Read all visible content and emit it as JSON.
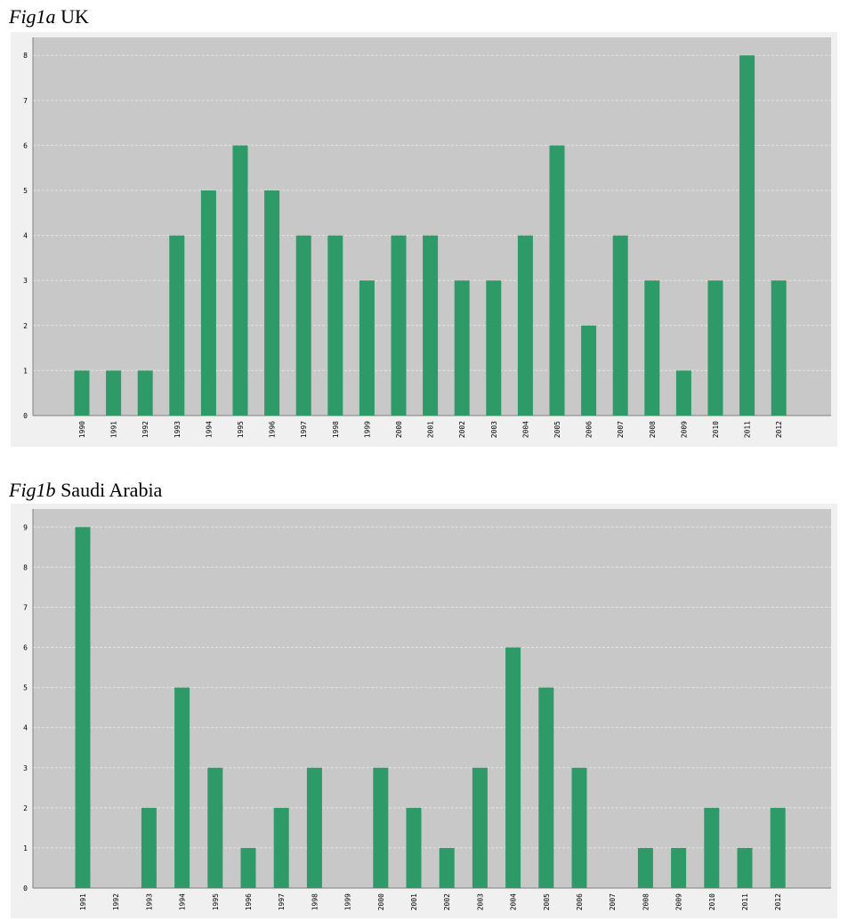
{
  "figures": [
    {
      "tag": "Fig1a",
      "title": "UK",
      "chart_data": {
        "type": "bar",
        "categories": [
          "1990",
          "1991",
          "1992",
          "1993",
          "1994",
          "1995",
          "1996",
          "1997",
          "1998",
          "1999",
          "2000",
          "2001",
          "2002",
          "2003",
          "2004",
          "2005",
          "2006",
          "2007",
          "2008",
          "2009",
          "2010",
          "2011",
          "2012"
        ],
        "values": [
          1,
          1,
          1,
          4,
          5,
          6,
          5,
          4,
          4,
          3,
          4,
          4,
          3,
          3,
          4,
          6,
          2,
          4,
          3,
          1,
          3,
          8,
          3
        ],
        "yticks": [
          0,
          1,
          2,
          3,
          4,
          5,
          6,
          7,
          8
        ],
        "ylim": [
          0,
          8.4
        ],
        "grid": true,
        "colors": {
          "bar": "#2e9a68",
          "plot_bg": "#c8c8c8",
          "grid": "#e4e4e4",
          "frame": "#f0f0f0"
        }
      }
    },
    {
      "tag": "Fig1b",
      "title": "Saudi Arabia",
      "chart_data": {
        "type": "bar",
        "categories": [
          "1991",
          "1992",
          "1993",
          "1994",
          "1995",
          "1996",
          "1997",
          "1998",
          "1999",
          "2000",
          "2001",
          "2002",
          "2003",
          "2004",
          "2005",
          "2006",
          "2007",
          "2008",
          "2009",
          "2010",
          "2011",
          "2012"
        ],
        "values": [
          9,
          0,
          2,
          5,
          3,
          1,
          2,
          3,
          0,
          3,
          2,
          1,
          3,
          6,
          5,
          3,
          0,
          1,
          1,
          2,
          1,
          2
        ],
        "yticks": [
          0,
          1,
          2,
          3,
          4,
          5,
          6,
          7,
          8,
          9
        ],
        "ylim": [
          0,
          9.45
        ],
        "grid": true,
        "colors": {
          "bar": "#2e9a68",
          "plot_bg": "#c8c8c8",
          "grid": "#e4e4e4",
          "frame": "#f0f0f0"
        }
      }
    }
  ]
}
